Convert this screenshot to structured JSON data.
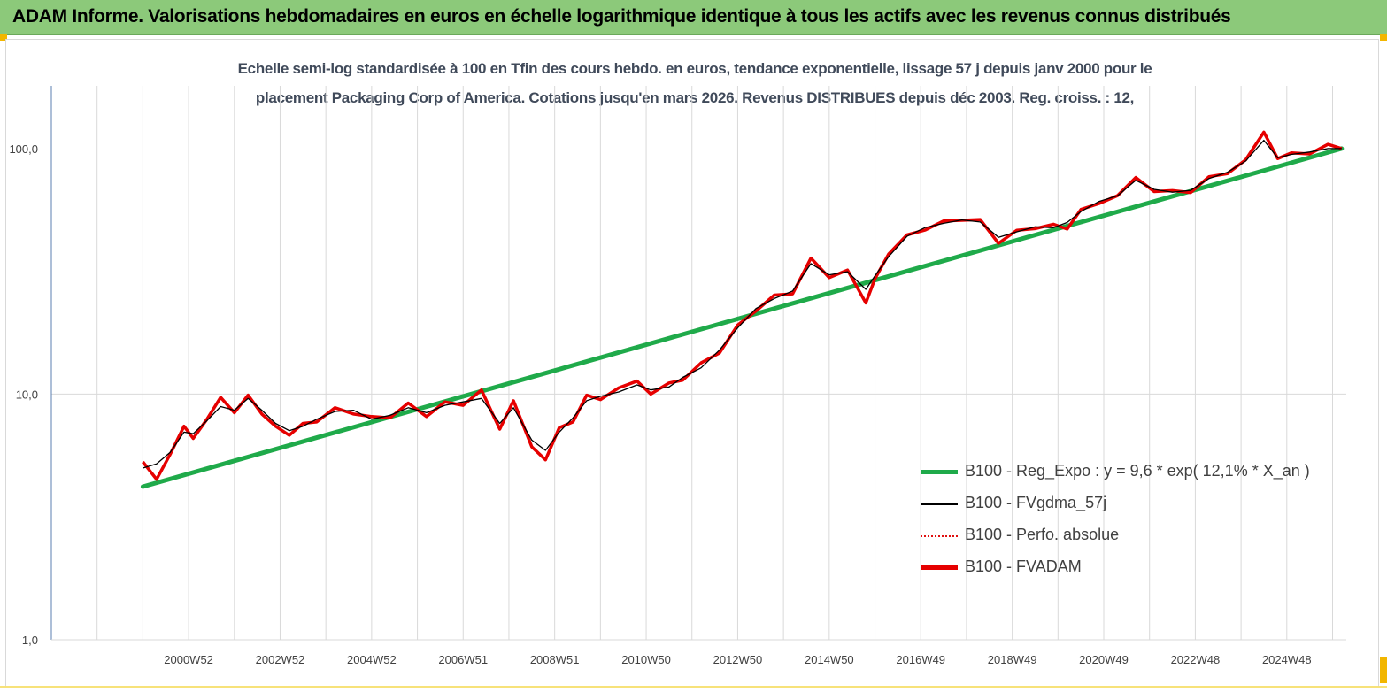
{
  "header": {
    "title": "ADAM Informe. Valorisations hebdomadaires en euros en échelle logarithmique identique à tous les actifs avec les revenus connus distribués"
  },
  "colors": {
    "banner": "#8cc97a",
    "reg_expo": "#1faa4a",
    "fvgdma": "#000000",
    "perfo": "#e01010",
    "fvadam": "#e60000",
    "grid": "#d9d9d9",
    "axis": "#5b7fb0"
  },
  "chart_data": {
    "type": "line",
    "title_line1": "Echelle semi-log standardisée à 100 en Tfin des cours hebdo. en euros, tendance exponentielle, lissage 57 j depuis janv 2000 pour le",
    "title_line2": "placement Packaging Corp of America.  Cotations jusqu'en mars 2026. Revenus DISTRIBUES depuis déc 2003. Reg. croiss. : 12,",
    "y_scale": "log",
    "ylim": [
      1,
      180
    ],
    "y_ticks": [
      "1,0",
      "10,0",
      "100,0"
    ],
    "y_tick_values": [
      1,
      10,
      100
    ],
    "x_ticks": [
      "2000W52",
      "2002W52",
      "2004W52",
      "2006W51",
      "2008W51",
      "2010W50",
      "2012W50",
      "2014W50",
      "2016W49",
      "2018W49",
      "2020W49",
      "2022W48",
      "2024W48"
    ],
    "xlim": [
      1998.0,
      2026.3
    ],
    "grid": "vertical",
    "legend_position": "right",
    "series": [
      {
        "name": "B100 - Reg_Expo : y = 9,6 * exp( 12,1% *  X_an )",
        "style": "thick-green",
        "x": [
          2000.0,
          2026.2
        ],
        "values": [
          4.2,
          100
        ]
      },
      {
        "name": "B100 - FVgdma_57j",
        "style": "thin-black",
        "x": [
          2000.0,
          2000.3,
          2000.6,
          2000.9,
          2001.1,
          2001.4,
          2001.7,
          2002.0,
          2002.3,
          2002.6,
          2002.9,
          2003.2,
          2003.5,
          2003.8,
          2004.2,
          2004.6,
          2005.0,
          2005.4,
          2005.8,
          2006.2,
          2006.6,
          2007.0,
          2007.4,
          2007.8,
          2008.1,
          2008.5,
          2008.8,
          2009.1,
          2009.4,
          2009.7,
          2010.0,
          2010.4,
          2010.8,
          2011.1,
          2011.5,
          2011.8,
          2012.2,
          2012.6,
          2013.0,
          2013.4,
          2013.8,
          2014.2,
          2014.6,
          2015.0,
          2015.4,
          2015.8,
          2016.0,
          2016.3,
          2016.7,
          2017.1,
          2017.5,
          2017.9,
          2018.3,
          2018.7,
          2019.1,
          2019.5,
          2019.9,
          2020.2,
          2020.5,
          2020.9,
          2021.3,
          2021.7,
          2022.1,
          2022.5,
          2022.9,
          2023.3,
          2023.7,
          2024.1,
          2024.5,
          2024.8,
          2025.1,
          2025.5,
          2025.9,
          2026.2
        ],
        "values": [
          5.0,
          5.2,
          5.8,
          7.0,
          6.9,
          7.8,
          8.9,
          8.6,
          9.6,
          8.6,
          7.6,
          7.1,
          7.4,
          7.9,
          8.5,
          8.6,
          7.9,
          8.2,
          8.8,
          8.4,
          9.0,
          9.3,
          9.6,
          7.6,
          8.8,
          6.5,
          5.9,
          7.0,
          8.0,
          9.4,
          9.8,
          10.2,
          10.9,
          10.4,
          10.7,
          11.7,
          12.8,
          15.1,
          18.6,
          22.3,
          24.5,
          26.3,
          34.0,
          30.6,
          31.5,
          26.7,
          30.3,
          36.3,
          43.9,
          47.7,
          49.6,
          51.2,
          50.2,
          43.5,
          45.8,
          48.0,
          47.6,
          50.0,
          55.4,
          60.9,
          64.2,
          74.2,
          68.2,
          66.4,
          67.6,
          75.5,
          80.0,
          88.9,
          108.0,
          91.7,
          94.6,
          96.8,
          100.0,
          100.0
        ]
      },
      {
        "name": "B100 - Perfo. absolue",
        "style": "dotted-red"
      },
      {
        "name": "B100 - FVADAM",
        "style": "thick-red",
        "x": [
          2000.0,
          2000.3,
          2000.6,
          2000.9,
          2001.1,
          2001.4,
          2001.7,
          2002.0,
          2002.3,
          2002.6,
          2002.9,
          2003.2,
          2003.5,
          2003.8,
          2004.2,
          2004.6,
          2005.0,
          2005.4,
          2005.8,
          2006.2,
          2006.6,
          2007.0,
          2007.4,
          2007.8,
          2008.1,
          2008.5,
          2008.8,
          2009.1,
          2009.4,
          2009.7,
          2010.0,
          2010.4,
          2010.8,
          2011.1,
          2011.5,
          2011.8,
          2012.2,
          2012.6,
          2013.0,
          2013.4,
          2013.8,
          2014.2,
          2014.6,
          2015.0,
          2015.4,
          2015.8,
          2016.0,
          2016.3,
          2016.7,
          2017.1,
          2017.5,
          2017.9,
          2018.3,
          2018.7,
          2019.1,
          2019.5,
          2019.9,
          2020.2,
          2020.5,
          2020.9,
          2021.3,
          2021.7,
          2022.1,
          2022.5,
          2022.9,
          2023.3,
          2023.7,
          2024.1,
          2024.5,
          2024.8,
          2025.1,
          2025.5,
          2025.9,
          2026.2
        ],
        "values": [
          5.3,
          4.5,
          5.7,
          7.4,
          6.6,
          7.9,
          9.7,
          8.4,
          9.9,
          8.3,
          7.4,
          6.8,
          7.6,
          7.7,
          8.8,
          8.3,
          8.1,
          8.0,
          9.2,
          8.1,
          9.3,
          9.0,
          10.4,
          7.2,
          9.4,
          6.1,
          5.4,
          7.3,
          7.7,
          9.9,
          9.5,
          10.6,
          11.3,
          10.0,
          11.1,
          11.4,
          13.4,
          14.7,
          19.1,
          21.8,
          25.3,
          25.6,
          35.8,
          29.8,
          32.0,
          23.5,
          29.5,
          37.2,
          44.5,
          46.6,
          50.7,
          51.0,
          51.4,
          41.1,
          46.5,
          47.2,
          49.2,
          47.0,
          56.5,
          59.7,
          64.3,
          76.2,
          66.8,
          67.4,
          66.2,
          76.8,
          79.0,
          90.0,
          116.5,
          91.0,
          96.0,
          95.0,
          104.0,
          100.0
        ]
      }
    ]
  }
}
